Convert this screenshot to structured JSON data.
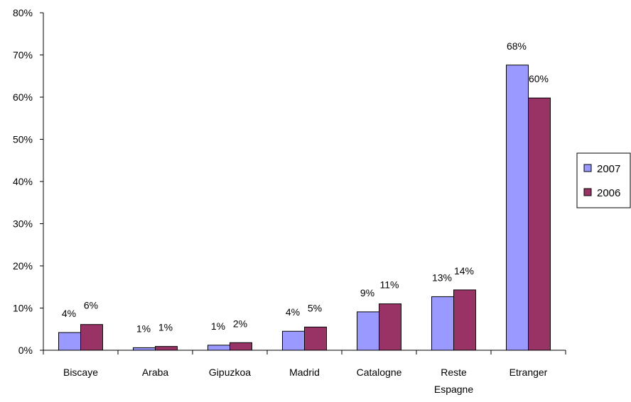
{
  "chart_data": {
    "type": "bar",
    "categories": [
      [
        "Biscaye"
      ],
      [
        "Araba"
      ],
      [
        "Gipuzkoa"
      ],
      [
        "Madrid"
      ],
      [
        "Catalogne"
      ],
      [
        "Reste",
        "Espagne"
      ],
      [
        "Etranger"
      ]
    ],
    "series": [
      {
        "name": "2007",
        "color": "#9999ff",
        "values": [
          4.2,
          0.6,
          1.2,
          4.5,
          9.1,
          12.7,
          67.6
        ],
        "labels": [
          "4%",
          "1%",
          "1%",
          "4%",
          "9%",
          "13%",
          "68%"
        ]
      },
      {
        "name": "2006",
        "color": "#993366",
        "values": [
          6.1,
          0.9,
          1.8,
          5.5,
          11.0,
          14.3,
          59.8
        ],
        "labels": [
          "6%",
          "1%",
          "2%",
          "5%",
          "11%",
          "14%",
          "60%"
        ]
      }
    ],
    "ylim": [
      0,
      80
    ],
    "yticks": [
      0,
      10,
      20,
      30,
      40,
      50,
      60,
      70,
      80
    ],
    "ytick_labels": [
      "0%",
      "10%",
      "20%",
      "30%",
      "40%",
      "50%",
      "60%",
      "70%",
      "80%"
    ],
    "title": "",
    "xlabel": "",
    "ylabel": "",
    "grid": false,
    "legend_position": "right"
  }
}
